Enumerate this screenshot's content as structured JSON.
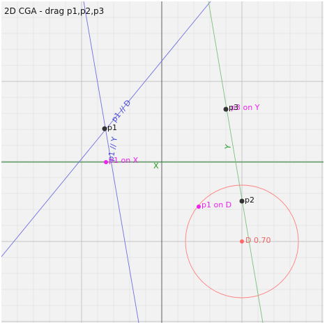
{
  "title": "2D CGA - drag p1,p2,p3",
  "colors": {
    "canvas_bg": "#f2f2f2",
    "grid": "#d8d8d8",
    "grid_major": "#b5b5b5",
    "axis_v": "#444444",
    "axis_h": "#2e8b3a",
    "line_blue": "#7070e0",
    "line_green": "#7fbf7f",
    "circle": "#ff8080",
    "magenta": "#ee22ee",
    "dark_point": "#333333",
    "green_text": "#229922",
    "blue_text": "#4848d8",
    "red_text": "#ee6666"
  },
  "points": {
    "p1": {
      "label": "p1"
    },
    "p2": {
      "label": "p2"
    },
    "p3": {
      "label": "p3"
    }
  },
  "labels": {
    "p3_on_y": "p3 on Y",
    "p1_on_x": "p1 on X",
    "p1_on_d": "p1 on D",
    "d_radius": "D 0.70",
    "line_x": "X",
    "line_y": "Y",
    "p1_parallel_d": "p1 // D",
    "p1_parallel_y": "p1 // Y"
  }
}
